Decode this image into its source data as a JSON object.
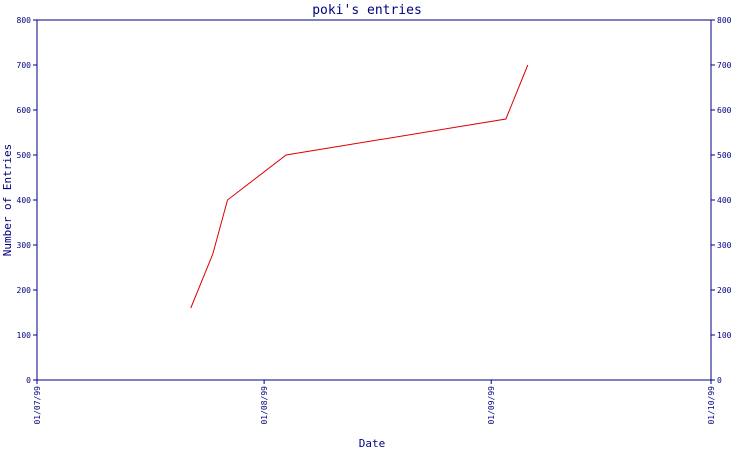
{
  "chart_data": {
    "type": "line",
    "title": "poki's entries",
    "xlabel": "Date",
    "ylabel": "Number of Entries",
    "x_tick_labels": [
      "01/07/99",
      "01/08/99",
      "01/09/99",
      "01/10/99"
    ],
    "x_tick_dates": [
      "1999-07-01",
      "1999-08-01",
      "1999-09-01",
      "1999-10-01"
    ],
    "xlim": [
      "1999-07-01",
      "1999-10-01"
    ],
    "ylim": [
      0,
      800
    ],
    "y_ticks": [
      0,
      100,
      200,
      300,
      400,
      500,
      600,
      700,
      800
    ],
    "right_axis": true,
    "grid": false,
    "line_color": "#dd0000",
    "axis_color": "#000080",
    "series": [
      {
        "x": [
          "1999-07-22",
          "1999-07-25",
          "1999-07-27",
          "1999-08-04",
          "1999-09-03",
          "1999-09-06"
        ],
        "y": [
          160,
          280,
          400,
          500,
          580,
          700
        ]
      }
    ]
  }
}
